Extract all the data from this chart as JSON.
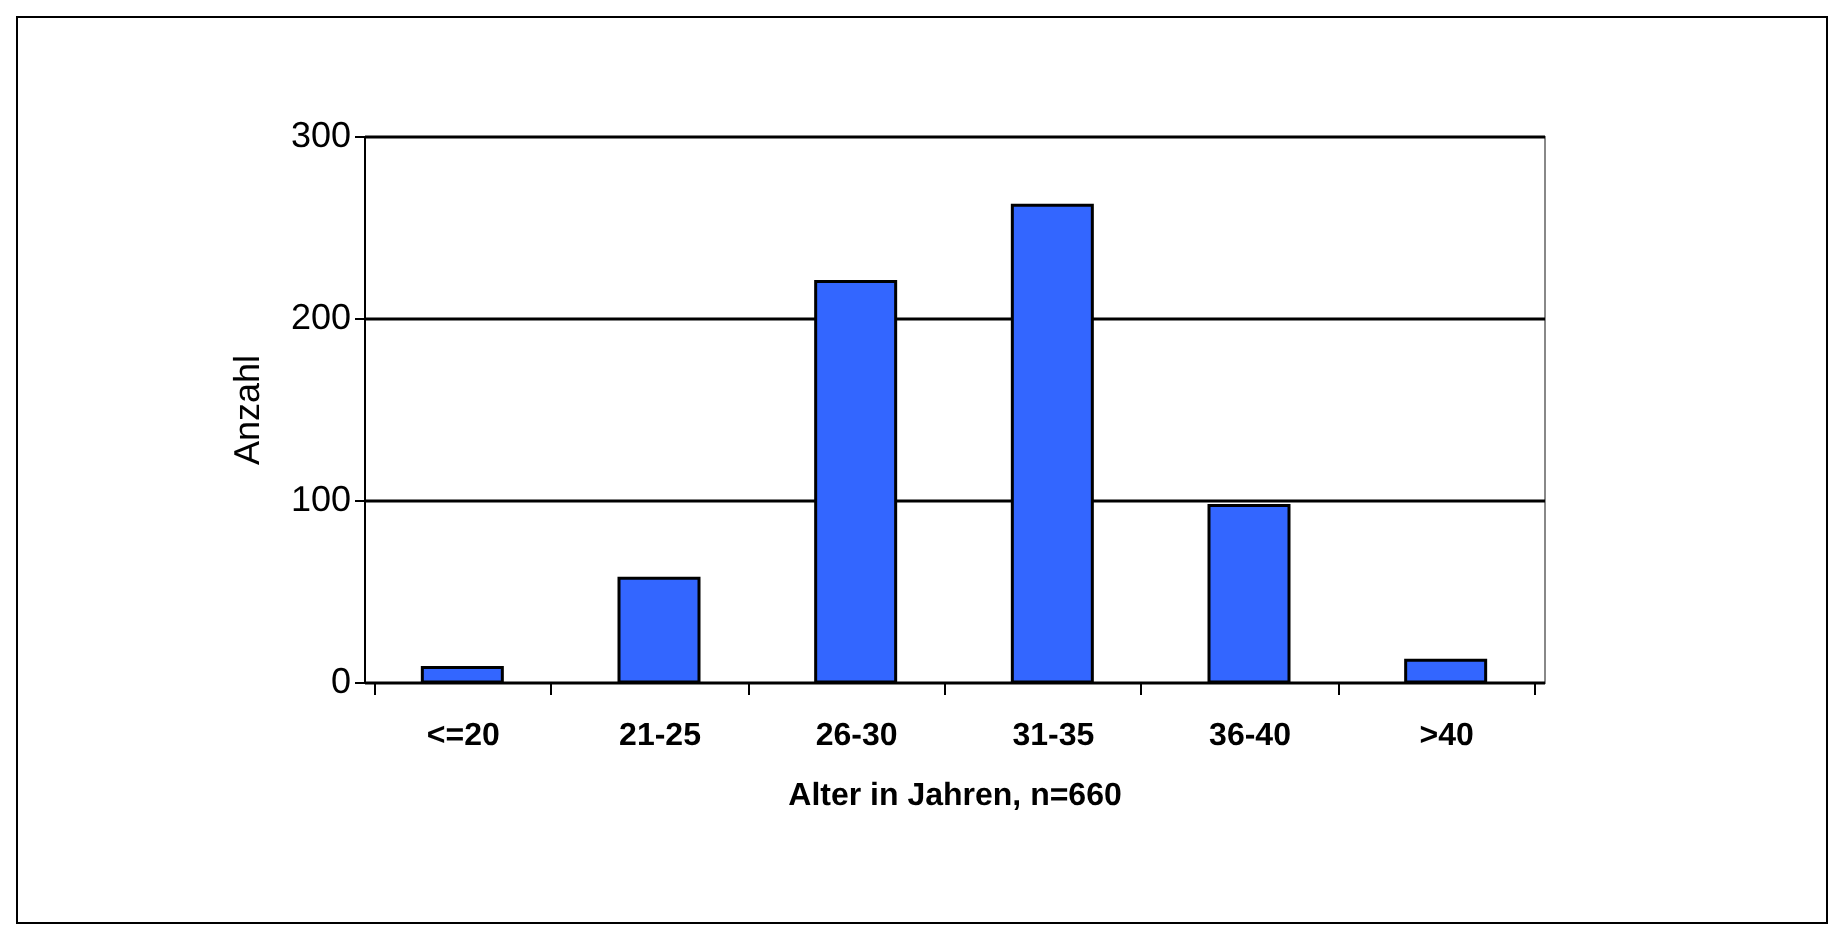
{
  "chart_data": {
    "type": "bar",
    "xlabel": "Alter in Jahren, n=660",
    "ylabel": "Anzahl",
    "categories": [
      "<=20",
      "21-25",
      "26-30",
      "31-35",
      "36-40",
      ">40"
    ],
    "values": [
      8,
      57,
      220,
      262,
      97,
      12
    ],
    "color": "#3366ff",
    "ylim": [
      0,
      300
    ],
    "yticks": [
      0,
      100,
      200,
      300
    ],
    "grid": "y"
  }
}
